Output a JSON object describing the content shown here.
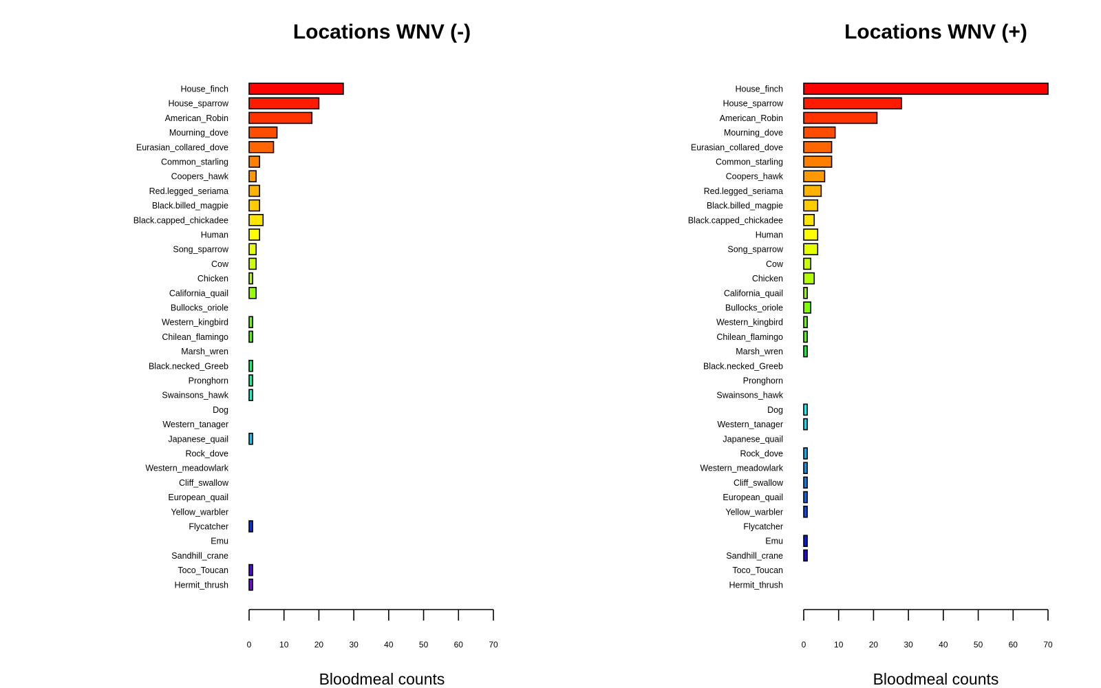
{
  "chart_data": [
    {
      "type": "bar",
      "orientation": "horizontal",
      "title": "Locations WNV (-)",
      "xlabel": "Bloodmeal counts",
      "ylabel": "",
      "xlim": [
        0,
        70
      ],
      "xticks": [
        0,
        10,
        20,
        30,
        40,
        50,
        60,
        70
      ],
      "grid": false,
      "categories": [
        "House_finch",
        "House_sparrow",
        "American_Robin",
        "Mourning_dove",
        "Eurasian_collared_dove",
        "Common_starling",
        "Coopers_hawk",
        "Red.legged_seriama",
        "Black.billed_magpie",
        "Black.capped_chickadee",
        "Human",
        "Song_sparrow",
        "Cow",
        "Chicken",
        "California_quail",
        "Bullocks_oriole",
        "Western_kingbird",
        "Chilean_flamingo",
        "Marsh_wren",
        "Black.necked_Greeb",
        "Pronghorn",
        "Swainsons_hawk",
        "Dog",
        "Western_tanager",
        "Japanese_quail",
        "Rock_dove",
        "Western_meadowlark",
        "Cliff_swallow",
        "European_quail",
        "Yellow_warbler",
        "Flycatcher",
        "Emu",
        "Sandhill_crane",
        "Toco_Toucan",
        "Hermit_thrush"
      ],
      "values": [
        27,
        20,
        18,
        8,
        7,
        3,
        2,
        3,
        3,
        4,
        3,
        2,
        2,
        1,
        2,
        0,
        1,
        1,
        0,
        1,
        1,
        1,
        0,
        0,
        1,
        0,
        0,
        0,
        0,
        0,
        1,
        0,
        0,
        1,
        1
      ]
    },
    {
      "type": "bar",
      "orientation": "horizontal",
      "title": "Locations WNV (+)",
      "xlabel": "Bloodmeal counts",
      "ylabel": "",
      "xlim": [
        0,
        70
      ],
      "xticks": [
        0,
        10,
        20,
        30,
        40,
        50,
        60,
        70
      ],
      "grid": false,
      "categories": [
        "House_finch",
        "House_sparrow",
        "American_Robin",
        "Mourning_dove",
        "Eurasian_collared_dove",
        "Common_starling",
        "Coopers_hawk",
        "Red.legged_seriama",
        "Black.billed_magpie",
        "Black.capped_chickadee",
        "Human",
        "Song_sparrow",
        "Cow",
        "Chicken",
        "California_quail",
        "Bullocks_oriole",
        "Western_kingbird",
        "Chilean_flamingo",
        "Marsh_wren",
        "Black.necked_Greeb",
        "Pronghorn",
        "Swainsons_hawk",
        "Dog",
        "Western_tanager",
        "Japanese_quail",
        "Rock_dove",
        "Western_meadowlark",
        "Cliff_swallow",
        "European_quail",
        "Yellow_warbler",
        "Flycatcher",
        "Emu",
        "Sandhill_crane",
        "Toco_Toucan",
        "Hermit_thrush"
      ],
      "values": [
        70,
        28,
        21,
        9,
        8,
        8,
        6,
        5,
        4,
        3,
        4,
        4,
        2,
        3,
        1,
        2,
        1,
        1,
        1,
        0,
        0,
        0,
        1,
        1,
        0,
        1,
        1,
        1,
        1,
        1,
        0,
        1,
        1,
        0,
        0
      ]
    }
  ],
  "colors": [
    "#FF0000",
    "#FF1A00",
    "#FF3300",
    "#FF4D00",
    "#FF6600",
    "#FF8000",
    "#FF9900",
    "#FFB300",
    "#FFCC00",
    "#FFE500",
    "#FFFF00",
    "#E5FF00",
    "#CCFF00",
    "#B3FF00",
    "#99FF00",
    "#80FF00",
    "#66FF00",
    "#4DFF00",
    "#00FF33",
    "#00FF66",
    "#00FF99",
    "#00FFCC",
    "#00FFFF",
    "#00E5FF",
    "#00CCFF",
    "#00B3FF",
    "#0099FF",
    "#0080FF",
    "#0066FF",
    "#004DFF",
    "#0033FF",
    "#001AFF",
    "#2A00FF",
    "#5500FF",
    "#8000FF"
  ]
}
